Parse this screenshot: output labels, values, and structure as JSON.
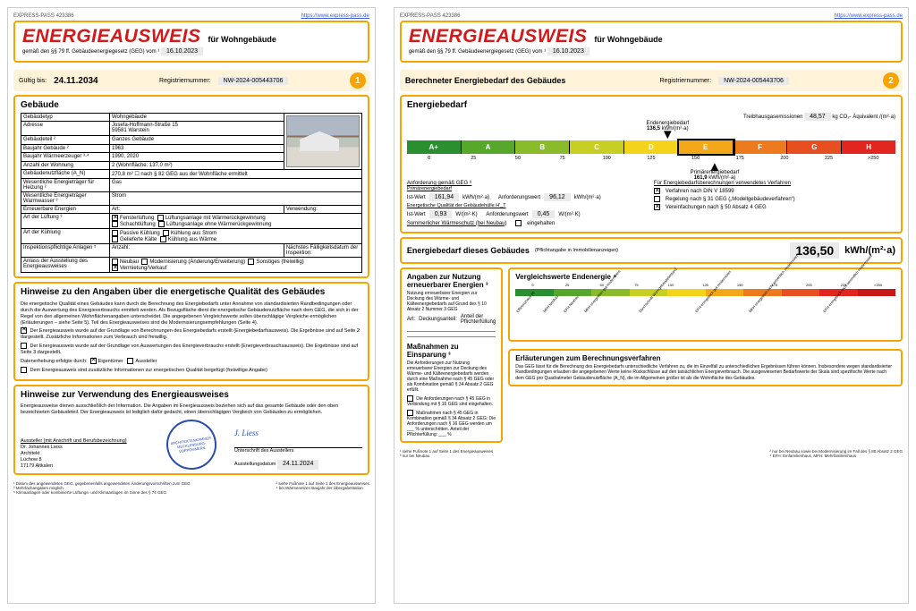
{
  "meta": {
    "pass_id": "EXPRESS-PASS 423386",
    "url": "https://www.express-pass.de"
  },
  "doc": {
    "title": "ENERGIEAUSWEIS",
    "subtitle": "für Wohngebäude",
    "basis": "gemäß den §§ 79 ff. Gebäudeenergiegesetz (GEG) vom ¹",
    "date": "16.10.2023"
  },
  "validity": {
    "label": "Gültig bis:",
    "date": "24.11.2034",
    "reg_label": "Registriernummer:",
    "reg_no": "NW-2024-005443706",
    "page": "1"
  },
  "building": {
    "title": "Gebäude",
    "rows": [
      [
        "Gebäudetyp",
        "Wohngebäude"
      ],
      [
        "Adresse",
        "Josefa-Hoffmann-Straße 15\n59581 Warstein"
      ],
      [
        "Gebäudeteil ²",
        "Ganzes Gebäude"
      ],
      [
        "Baujahr Gebäude ²",
        "1963"
      ],
      [
        "Baujahr Wärmeerzeuger ³·⁴",
        "1990, 2020"
      ],
      [
        "Anzahl der Wohnung",
        "2   (Wohnfläche: 137,0 m²)"
      ],
      [
        "Gebäudenutzfläche (A_N)",
        "270,8 m²        ☐ nach § 82 GEG aus der Wohnfläche ermittelt"
      ],
      [
        "Wesentliche Energieträger für Heizung ²",
        "Gas"
      ],
      [
        "Wesentliche Energieträger Warmwasser ²",
        "Strom"
      ]
    ],
    "renew_label": "Erneuerbare Energien",
    "renew_art": "Art:",
    "renew_use": "Verwendung:",
    "luft_label": "Art der Lüftung ³",
    "luft_opts": [
      "Fensterlüftung",
      "Lüftungsanlage mit Wärmerückgewinnung",
      "Schachtlüftung",
      "Lüftungsanlage ohne Wärmerückgewinnung"
    ],
    "kuhl_label": "Art der Kühlung",
    "kuhl_opts": [
      "Passive Kühlung",
      "Kühlung aus Strom",
      "Gelieferte Kälte",
      "Kühlung aus Wärme"
    ],
    "insp_label": "Inspektionspflichtige Anlagen ⁵",
    "insp_cols": [
      "Anzahl:",
      "Nächstes Fälligkeitsdatum der Inspektion:"
    ],
    "anlass_label": "Anlass der Ausstellung des Energieausweises",
    "anlass_opts": [
      "Neubau",
      "Modernisierung (Änderung/Erweiterung)",
      "Vermietung/Verkauf",
      "Sonstiges (freiwillig)"
    ]
  },
  "hinweise1": {
    "title": "Hinweise zu den Angaben über die energetische Qualität des Gebäudes",
    "p1": "Die energetische Qualität eines Gebäudes kann durch die Berechnung des Energiebedarfs unter Annahme von standardisierten Randbedingungen oder durch die Auswertung des Energieverbrauchs ermittelt werden. Als Bezugsfläche dient die energetische Gebäudenutzfläche nach dem GEG, die sich in der Regel von den allgemeinen Wohnflächenangaben unterscheidet. Die angegebenen Vergleichswerte sollen überschlägige Vergleiche ermöglichen (Erläuterungen – siehe Seite 5). Teil des Energieausweises sind die Modernisierungsempfehlungen (Seite 4).",
    "bul1": "Der Energieausweis wurde auf der Grundlage von Berechnungen des Energiebedarfs erstellt (Energiebedarfsausweis). Die Ergebnisse sind auf Seite 2 dargestellt. Zusätzliche Informationen zum Verbrauch sind freiwillig.",
    "bul2": "Der Energieausweis wurde auf der Grundlage von Auswertungen des Energieverbrauchs erstellt (Energieverbrauchsausweis). Die Ergebnisse sind auf Seite 3 dargestellt.",
    "data_label": "Datenerhebung erfolgte durch:",
    "data_opts": [
      "Eigentümer",
      "Aussteller"
    ],
    "extra": "Dem Energieausweis sind zusätzliche Informationen zur energetischen Qualität beigefügt (freiwillige Angabe)"
  },
  "hinweise2": {
    "title": "Hinweise zur Verwendung des Energieausweises",
    "p": "Energieausweise dienen ausschließlich der Information. Die Angaben im Energieausweis beziehen sich auf das gesamte Gebäude oder den oben bezeichneten Gebäudeteil. Der Energieausweis ist lediglich dafür gedacht, einen überschlägigen Vergleich von Gebäuden zu ermöglichen.",
    "issuer_lbl": "Aussteller (mit Anschrift und Berufsbezeichnung)",
    "issuer": [
      "Dr. Johannes Liess",
      "Architekt",
      "Lüchow 8",
      "17179 Altkalen"
    ],
    "sig_lbl": "Unterschrift des Ausstellers",
    "sig_date_lbl": "Ausstellungsdatum",
    "sig_date": "24.11.2024",
    "stamp": "ARCHITEKTENKAMMER MECKLENBURG-VORPOMMERN"
  },
  "foot1": [
    "¹ Datum des angewendeten GEG, gegebenenfalls angewendeten Änderungsvorschriften zum GEG",
    "² siehe Fußnote 1 auf Seite 1 des Energieausweises",
    "³ Mehrfachangaben möglich",
    "⁴ bei Wärmenetzen Baujahr der Übergabestation",
    "⁵ Klimaanlagen oder kombinierte Lüftungs- und Klimaanlagen im Sinne des § 74 GEG"
  ],
  "p2bar": {
    "title": "Berechneter Energiebedarf des Gebäudes",
    "reg_label": "Registriernummer:",
    "reg_no": "NW-2024-005443706",
    "page": "2"
  },
  "demand": {
    "title": "Energiebedarf",
    "ghg_label": "Treibhausgasemissionen",
    "ghg_val": "48,57",
    "ghg_unit": "kg CO₂- Äquivalent /(m²·a)",
    "end_label": "Endenergiebedarf",
    "end_val": "136,5",
    "end_unit": "kWh/(m²·a)",
    "prim_label": "Primärenergiebedarf",
    "prim_val": "161,9",
    "prim_unit": "kWh/(m²·a)",
    "classes": [
      "A+",
      "A",
      "B",
      "C",
      "D",
      "E",
      "F",
      "G",
      "H"
    ],
    "colors": [
      "#2a8f2f",
      "#57a72d",
      "#8abb2a",
      "#c7cf24",
      "#f4d31b",
      "#f3a81a",
      "#ed7b1e",
      "#e74e20",
      "#e0261e"
    ],
    "ticks": [
      "0",
      "25",
      "50",
      "75",
      "100",
      "125",
      "150",
      "175",
      "200",
      "225",
      ">250"
    ],
    "active_idx": 5,
    "anf_title": "Anforderung gemäß GEG ⁸",
    "anf_sub": "Primärenergiebedarf",
    "ist_lbl": "Ist-Wert",
    "ist_val": "161,94",
    "ist_unit": "kWh/(m²·a)",
    "anf_lbl": "Anforderungswert",
    "anf_val": "96,12",
    "anf_unit": "kWh/(m²·a)",
    "hull": "Energetische Qualität der Gebäudehülle H'_T",
    "hull_ist": "0,93",
    "hull_anf": "0,45",
    "hull_unit": "W/(m²·K)",
    "ws_lbl": "Sommerlicher Wärmeschutz (bei Neubau)",
    "ws_opt": "eingehalten",
    "verf_title": "Für Energiebedarfsberechnungen verwendetes Verfahren",
    "verf_opts": [
      "Verfahren nach DIN V 18599",
      "Regelung nach § 31 GEG („Modellgebäudeverfahren“)",
      "Vereinfachungen nach § 50 Absatz 4 GEG"
    ],
    "verf_chk": [
      true,
      false,
      true
    ]
  },
  "bed2": {
    "title": "Energiebedarf dieses Gebäudes",
    "note": "(Pflichtangabe in Immobilienanzeigen)",
    "val": "136,50",
    "unit": "kWh/(m²·a)"
  },
  "renew2": {
    "title": "Angaben zur Nutzung erneuerbarer Energien ³",
    "sub": "Nutzung erneuerbarer Energien zur Deckung des Wärme- und Kälteenergiebedarfs auf Grund des § 10 Absatz 2 Nummer 3 GEG",
    "cols": [
      "Art:",
      "Deckungsanteil:",
      "Anteil der Pflichterfüllung"
    ]
  },
  "compare": {
    "title": "Vergleichswerte Endenergie ⁴",
    "ticks": [
      "0",
      "25",
      "50",
      "75",
      "100",
      "125",
      "150",
      "175",
      "200",
      "225",
      ">250"
    ],
    "colors": [
      "#2a8f2f",
      "#57a72d",
      "#8abb2a",
      "#c7cf24",
      "#f4d31b",
      "#f3a81a",
      "#ed7b1e",
      "#e74e20",
      "#e0261e",
      "#c71818"
    ],
    "labels": [
      "Effizienzhaus 40",
      "MFH Neubau",
      "EFH Neubau",
      "MFH energetisch gut modernisiert",
      "Durchschnitt Wohngebäudebestand",
      "EFH energetisch gut modernisiert",
      "MFH energetisch nicht wesentlich modernisiert",
      "EFH energetisch nicht wesentlich modernisiert"
    ]
  },
  "mass": {
    "title": "Maßnahmen zu Einsparung ³",
    "p": "Die Anforderungen zur Nutzung erneuerbarer Energien zur Deckung des Wärme- und Kälteenergiebedarfs werden durch eine Maßnahme nach § 45 GEG oder als Kombination gemäß § 34 Absatz 2 GEG erfüllt.",
    "o1": "Die Anforderungen nach § 45 GEG in Verbindung mit § 16 GEG sind eingehalten.",
    "o2": "Maßnahmen nach § 45 GEG in Kombination gemäß § 34 Absatz 2 GEG: Die Anforderungen nach § 16 GEG werden um ___ % unterschritten. Anteil der Pflichterfüllung: ___ %"
  },
  "erl": {
    "title": "Erläuterungen zum Berechnungsverfahren",
    "p": "Das GEG lässt für die Berechnung des Energiebedarfs unterschiedliche Verfahren zu, die im Einzelfall zu unterschiedlichen Ergebnissen führen können. Insbesondere wegen standardisierter Randbedingungen erlauben die angegebenen Werte keine Rückschlüsse auf den tatsächlichen Energieverbrauch. Die ausgewiesenen Bedarfswerte der Skala sind spezifische Werte nach dem GEG pro Quadratmeter Gebäudenutzfläche (A_N), die im Allgemeinen größer ist als die Wohnfläche des Gebäudes."
  },
  "foot2": [
    "¹ siehe Fußnote 1 auf Seite 1 des Energieausweises",
    "² nur bei Neubau sowie bei Modernisierung im Fall des § 80 Absatz 2 GEG",
    "³ nur bei Neubau",
    "⁴ EFH: Einfamilienhaus, MFH: Mehrfamilienhaus"
  ]
}
